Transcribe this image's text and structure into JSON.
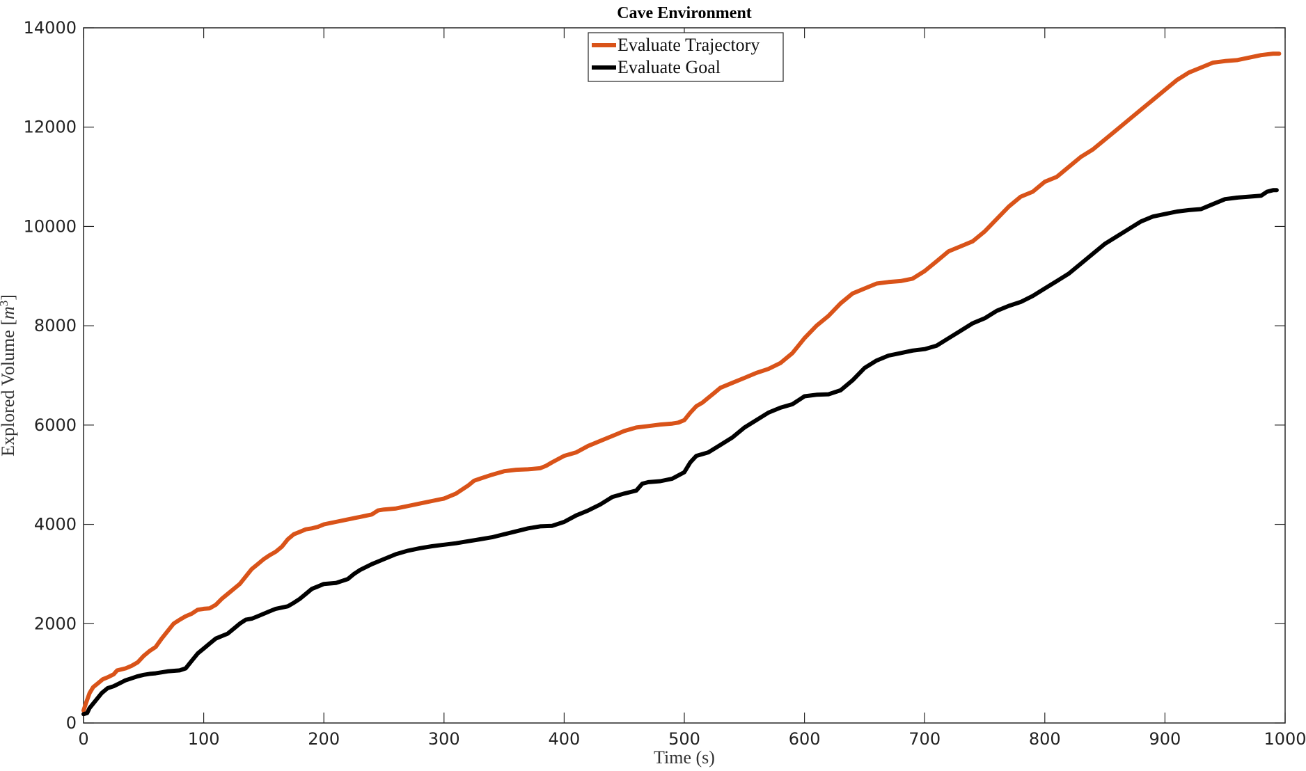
{
  "chart_data": {
    "type": "line",
    "title": "Cave Environment",
    "xlabel": "Time (s)",
    "ylabel": "Explored Volume [",
    "ylabel_unit_base": "m",
    "ylabel_unit_exp": "3",
    "ylabel_close": "]",
    "xlim": [
      0,
      1000
    ],
    "ylim": [
      0,
      14000
    ],
    "xticks": [
      0,
      100,
      200,
      300,
      400,
      500,
      600,
      700,
      800,
      900,
      1000
    ],
    "yticks": [
      0,
      2000,
      4000,
      6000,
      8000,
      10000,
      12000,
      14000
    ],
    "xtick_labels": [
      "0",
      "100",
      "200",
      "300",
      "400",
      "500",
      "600",
      "700",
      "800",
      "900",
      "1000"
    ],
    "ytick_labels": [
      "0",
      "2000",
      "4000",
      "6000",
      "8000",
      "10000",
      "12000",
      "14000"
    ],
    "grid": false,
    "legend_position": "top-center",
    "series": [
      {
        "name": "Evaluate Trajectory",
        "color": "#D95319",
        "points": [
          [
            0,
            250
          ],
          [
            2,
            400
          ],
          [
            5,
            600
          ],
          [
            8,
            720
          ],
          [
            12,
            800
          ],
          [
            16,
            880
          ],
          [
            20,
            920
          ],
          [
            25,
            980
          ],
          [
            28,
            1060
          ],
          [
            35,
            1100
          ],
          [
            40,
            1150
          ],
          [
            45,
            1220
          ],
          [
            50,
            1350
          ],
          [
            55,
            1450
          ],
          [
            60,
            1530
          ],
          [
            65,
            1700
          ],
          [
            70,
            1850
          ],
          [
            75,
            2000
          ],
          [
            80,
            2080
          ],
          [
            85,
            2150
          ],
          [
            90,
            2200
          ],
          [
            95,
            2280
          ],
          [
            100,
            2300
          ],
          [
            105,
            2310
          ],
          [
            110,
            2380
          ],
          [
            115,
            2500
          ],
          [
            120,
            2600
          ],
          [
            125,
            2700
          ],
          [
            130,
            2800
          ],
          [
            135,
            2950
          ],
          [
            140,
            3100
          ],
          [
            145,
            3200
          ],
          [
            150,
            3300
          ],
          [
            155,
            3380
          ],
          [
            160,
            3450
          ],
          [
            165,
            3550
          ],
          [
            170,
            3700
          ],
          [
            175,
            3800
          ],
          [
            180,
            3850
          ],
          [
            185,
            3900
          ],
          [
            190,
            3920
          ],
          [
            195,
            3950
          ],
          [
            200,
            4000
          ],
          [
            210,
            4050
          ],
          [
            220,
            4100
          ],
          [
            230,
            4150
          ],
          [
            240,
            4200
          ],
          [
            245,
            4280
          ],
          [
            250,
            4300
          ],
          [
            260,
            4320
          ],
          [
            270,
            4370
          ],
          [
            280,
            4420
          ],
          [
            290,
            4470
          ],
          [
            300,
            4520
          ],
          [
            310,
            4620
          ],
          [
            320,
            4780
          ],
          [
            325,
            4880
          ],
          [
            330,
            4920
          ],
          [
            340,
            5000
          ],
          [
            350,
            5070
          ],
          [
            360,
            5100
          ],
          [
            370,
            5110
          ],
          [
            380,
            5130
          ],
          [
            385,
            5180
          ],
          [
            390,
            5250
          ],
          [
            400,
            5380
          ],
          [
            410,
            5450
          ],
          [
            420,
            5580
          ],
          [
            430,
            5680
          ],
          [
            440,
            5780
          ],
          [
            450,
            5880
          ],
          [
            460,
            5950
          ],
          [
            470,
            5980
          ],
          [
            480,
            6010
          ],
          [
            490,
            6030
          ],
          [
            495,
            6050
          ],
          [
            500,
            6100
          ],
          [
            505,
            6250
          ],
          [
            510,
            6380
          ],
          [
            515,
            6450
          ],
          [
            520,
            6550
          ],
          [
            525,
            6650
          ],
          [
            530,
            6750
          ],
          [
            540,
            6850
          ],
          [
            550,
            6950
          ],
          [
            560,
            7050
          ],
          [
            570,
            7130
          ],
          [
            580,
            7250
          ],
          [
            590,
            7450
          ],
          [
            600,
            7750
          ],
          [
            610,
            8000
          ],
          [
            620,
            8200
          ],
          [
            630,
            8450
          ],
          [
            640,
            8650
          ],
          [
            650,
            8750
          ],
          [
            660,
            8850
          ],
          [
            670,
            8880
          ],
          [
            680,
            8900
          ],
          [
            690,
            8950
          ],
          [
            700,
            9100
          ],
          [
            710,
            9300
          ],
          [
            720,
            9500
          ],
          [
            730,
            9600
          ],
          [
            740,
            9700
          ],
          [
            750,
            9900
          ],
          [
            760,
            10150
          ],
          [
            770,
            10400
          ],
          [
            780,
            10600
          ],
          [
            790,
            10700
          ],
          [
            800,
            10900
          ],
          [
            810,
            11000
          ],
          [
            820,
            11200
          ],
          [
            830,
            11400
          ],
          [
            840,
            11550
          ],
          [
            850,
            11750
          ],
          [
            860,
            11950
          ],
          [
            870,
            12150
          ],
          [
            880,
            12350
          ],
          [
            890,
            12550
          ],
          [
            900,
            12750
          ],
          [
            910,
            12950
          ],
          [
            920,
            13100
          ],
          [
            930,
            13200
          ],
          [
            940,
            13300
          ],
          [
            950,
            13330
          ],
          [
            960,
            13350
          ],
          [
            970,
            13400
          ],
          [
            980,
            13450
          ],
          [
            990,
            13480
          ],
          [
            995,
            13480
          ]
        ]
      },
      {
        "name": "Evaluate Goal",
        "color": "#000000",
        "points": [
          [
            0,
            180
          ],
          [
            3,
            200
          ],
          [
            5,
            300
          ],
          [
            10,
            450
          ],
          [
            15,
            600
          ],
          [
            20,
            700
          ],
          [
            25,
            740
          ],
          [
            30,
            800
          ],
          [
            35,
            860
          ],
          [
            40,
            900
          ],
          [
            45,
            940
          ],
          [
            50,
            970
          ],
          [
            55,
            990
          ],
          [
            60,
            1000
          ],
          [
            65,
            1020
          ],
          [
            70,
            1040
          ],
          [
            80,
            1060
          ],
          [
            85,
            1100
          ],
          [
            90,
            1250
          ],
          [
            95,
            1400
          ],
          [
            100,
            1500
          ],
          [
            105,
            1600
          ],
          [
            110,
            1700
          ],
          [
            115,
            1750
          ],
          [
            120,
            1800
          ],
          [
            125,
            1900
          ],
          [
            130,
            2000
          ],
          [
            135,
            2080
          ],
          [
            140,
            2100
          ],
          [
            145,
            2150
          ],
          [
            150,
            2200
          ],
          [
            155,
            2250
          ],
          [
            160,
            2300
          ],
          [
            170,
            2350
          ],
          [
            175,
            2420
          ],
          [
            180,
            2500
          ],
          [
            185,
            2600
          ],
          [
            190,
            2700
          ],
          [
            195,
            2750
          ],
          [
            200,
            2800
          ],
          [
            210,
            2820
          ],
          [
            220,
            2900
          ],
          [
            225,
            3000
          ],
          [
            230,
            3080
          ],
          [
            240,
            3200
          ],
          [
            250,
            3300
          ],
          [
            260,
            3400
          ],
          [
            270,
            3470
          ],
          [
            280,
            3520
          ],
          [
            290,
            3560
          ],
          [
            300,
            3590
          ],
          [
            310,
            3620
          ],
          [
            320,
            3660
          ],
          [
            330,
            3700
          ],
          [
            340,
            3740
          ],
          [
            350,
            3800
          ],
          [
            360,
            3860
          ],
          [
            370,
            3920
          ],
          [
            380,
            3960
          ],
          [
            390,
            3970
          ],
          [
            400,
            4050
          ],
          [
            410,
            4180
          ],
          [
            420,
            4280
          ],
          [
            430,
            4400
          ],
          [
            440,
            4550
          ],
          [
            450,
            4620
          ],
          [
            460,
            4680
          ],
          [
            465,
            4820
          ],
          [
            470,
            4850
          ],
          [
            480,
            4870
          ],
          [
            490,
            4920
          ],
          [
            500,
            5050
          ],
          [
            505,
            5250
          ],
          [
            510,
            5380
          ],
          [
            520,
            5450
          ],
          [
            530,
            5600
          ],
          [
            540,
            5750
          ],
          [
            550,
            5950
          ],
          [
            560,
            6100
          ],
          [
            570,
            6250
          ],
          [
            580,
            6350
          ],
          [
            590,
            6420
          ],
          [
            600,
            6580
          ],
          [
            610,
            6610
          ],
          [
            620,
            6620
          ],
          [
            630,
            6700
          ],
          [
            640,
            6900
          ],
          [
            650,
            7150
          ],
          [
            660,
            7300
          ],
          [
            670,
            7400
          ],
          [
            680,
            7450
          ],
          [
            690,
            7500
          ],
          [
            700,
            7530
          ],
          [
            710,
            7600
          ],
          [
            720,
            7750
          ],
          [
            730,
            7900
          ],
          [
            740,
            8050
          ],
          [
            750,
            8150
          ],
          [
            760,
            8300
          ],
          [
            770,
            8400
          ],
          [
            780,
            8480
          ],
          [
            790,
            8600
          ],
          [
            800,
            8750
          ],
          [
            810,
            8900
          ],
          [
            820,
            9050
          ],
          [
            830,
            9250
          ],
          [
            840,
            9450
          ],
          [
            850,
            9650
          ],
          [
            860,
            9800
          ],
          [
            870,
            9950
          ],
          [
            880,
            10100
          ],
          [
            890,
            10200
          ],
          [
            900,
            10250
          ],
          [
            910,
            10300
          ],
          [
            920,
            10330
          ],
          [
            930,
            10350
          ],
          [
            940,
            10450
          ],
          [
            950,
            10550
          ],
          [
            960,
            10580
          ],
          [
            970,
            10600
          ],
          [
            980,
            10620
          ],
          [
            985,
            10700
          ],
          [
            990,
            10730
          ],
          [
            993,
            10730
          ]
        ]
      }
    ]
  }
}
